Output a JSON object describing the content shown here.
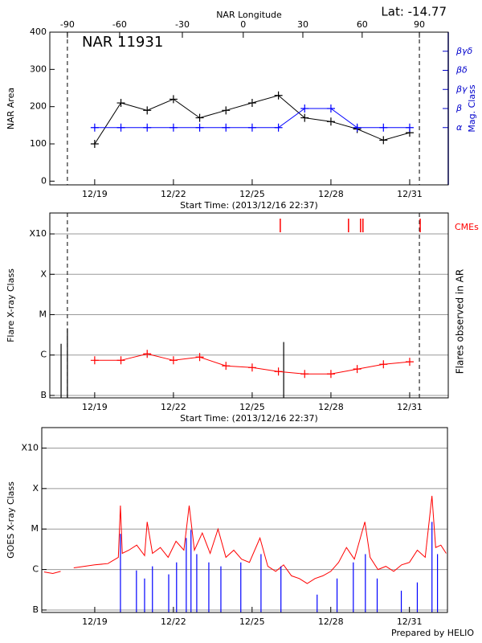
{
  "footer": "Prepared by HELIO",
  "chart_data": [
    {
      "type": "line",
      "title": "NAR 11931",
      "annotation": "Lat: -14.77",
      "x2label": "NAR Longitude",
      "xlabel": "Start Time: (2013/12/16 22:37)",
      "ylabel": "NAR Area",
      "y2label": "Mag. Class",
      "y2color": "#0000cc",
      "xlim": [
        17.29,
        32.47
      ],
      "xticks": [
        {
          "value": 19,
          "label": "12/19"
        },
        {
          "value": 22,
          "label": "12/22"
        },
        {
          "value": 25,
          "label": "12/25"
        },
        {
          "value": 28,
          "label": "12/28"
        },
        {
          "value": 31,
          "label": "12/31"
        }
      ],
      "x2ticks": [
        {
          "value": 17.96,
          "label": "-90"
        },
        {
          "value": 19.95,
          "label": "-60"
        },
        {
          "value": 22.34,
          "label": "-30"
        },
        {
          "value": 24.66,
          "label": "0"
        },
        {
          "value": 26.93,
          "label": "30"
        },
        {
          "value": 29.19,
          "label": "60"
        },
        {
          "value": 31.37,
          "label": "90"
        }
      ],
      "ylim": [
        -10,
        400
      ],
      "yticks": [
        0,
        100,
        200,
        300,
        400
      ],
      "y2lim": [
        0,
        8
      ],
      "y2ticks": [
        {
          "value": 3,
          "label": "α"
        },
        {
          "value": 4,
          "label": "β"
        },
        {
          "value": 5,
          "label": "βγ"
        },
        {
          "value": 6,
          "label": "βδ"
        },
        {
          "value": 7,
          "label": "βγδ"
        }
      ],
      "vlines": [
        17.96,
        31.37
      ],
      "series": [
        {
          "type": "line",
          "color": "#000000",
          "marker": "+",
          "x": [
            19,
            20,
            21,
            22,
            23,
            24,
            25,
            26,
            27,
            28,
            29,
            30,
            31
          ],
          "values": [
            100,
            210,
            190,
            220,
            170,
            190,
            210,
            230,
            170,
            160,
            140,
            110,
            130
          ]
        },
        {
          "type": "line",
          "color": "#0000ff",
          "marker": "+",
          "axis": "y2",
          "x": [
            19,
            20,
            21,
            22,
            23,
            24,
            25,
            26,
            27,
            28,
            29,
            30,
            31
          ],
          "values": [
            3,
            3,
            3,
            3,
            3,
            3,
            3,
            3,
            4,
            4,
            3,
            3,
            3
          ]
        }
      ]
    },
    {
      "type": "line",
      "ylabel": "Flare X-ray Class",
      "right_label": "Flares observed in AR",
      "xlabel": "Start Time: (2013/12/16 22:37)",
      "xlim": [
        17.29,
        32.47
      ],
      "xticks": [
        {
          "value": 19,
          "label": "12/19"
        },
        {
          "value": 22,
          "label": "12/22"
        },
        {
          "value": 25,
          "label": "12/25"
        },
        {
          "value": 28,
          "label": "12/28"
        },
        {
          "value": 31,
          "label": "12/31"
        }
      ],
      "log": true,
      "ylim": [
        8.7e-08,
        0.0033
      ],
      "yticks": [
        {
          "value": 1e-07,
          "label": "B"
        },
        {
          "value": 1e-06,
          "label": "C"
        },
        {
          "value": 1e-05,
          "label": "M"
        },
        {
          "value": 0.0001,
          "label": "X"
        },
        {
          "value": 0.001,
          "label": "X10"
        }
      ],
      "grid": true,
      "vlines": [
        17.96,
        31.37
      ],
      "series": [
        {
          "type": "bar",
          "color": "#000000",
          "x": [
            17.72,
            17.96,
            26.2
          ],
          "values": [
            1.9e-06,
            4.6e-06,
            2.1e-06
          ]
        },
        {
          "type": "line",
          "color": "#ff0000",
          "marker": "+",
          "x": [
            19,
            20,
            21,
            22,
            23,
            24,
            25,
            26,
            27,
            28,
            29,
            30,
            31
          ],
          "values": [
            7.4e-07,
            7.4e-07,
            1.07e-06,
            7.4e-07,
            8.9e-07,
            5.4e-07,
            4.9e-07,
            3.9e-07,
            3.4e-07,
            3.4e-07,
            4.5e-07,
            5.9e-07,
            6.8e-07
          ]
        },
        {
          "type": "event",
          "name": "CMEs",
          "color": "#ff0000",
          "x": [
            26.07,
            28.67,
            29.13,
            29.22,
            31.4
          ]
        }
      ]
    },
    {
      "type": "line",
      "ylabel": "GOES X-ray Class",
      "xlim": [
        16.98,
        32.45
      ],
      "xticks": [
        {
          "value": 19,
          "label": "12/19"
        },
        {
          "value": 22,
          "label": "12/22"
        },
        {
          "value": 25,
          "label": "12/25"
        },
        {
          "value": 28,
          "label": "12/28"
        },
        {
          "value": 31,
          "label": "12/31"
        }
      ],
      "log": true,
      "ylim": [
        8.7e-08,
        0.0032
      ],
      "yticks": [
        {
          "value": 1e-07,
          "label": "B"
        },
        {
          "value": 1e-06,
          "label": "C"
        },
        {
          "value": 1e-05,
          "label": "M"
        },
        {
          "value": 0.0001,
          "label": "X"
        },
        {
          "value": 0.001,
          "label": "X10"
        }
      ],
      "grid": true,
      "series": [
        {
          "type": "line",
          "color": "#ff0000",
          "x": [
            17.07,
            17.4,
            17.7,
            17.9,
            18.2,
            18.6,
            19.0,
            19.5,
            19.9,
            19.98,
            20.05,
            20.3,
            20.6,
            20.9,
            21.0,
            21.2,
            21.5,
            21.8,
            22.1,
            22.4,
            22.6,
            22.8,
            23.1,
            23.4,
            23.7,
            24.0,
            24.3,
            24.6,
            24.9,
            25.3,
            25.6,
            25.9,
            26.2,
            26.5,
            26.8,
            27.1,
            27.4,
            27.7,
            28.0,
            28.3,
            28.6,
            28.9,
            29.3,
            29.5,
            29.8,
            30.1,
            30.4,
            30.7,
            31.0,
            31.3,
            31.6,
            31.86,
            32.0,
            32.2,
            32.4
          ],
          "values": [
            8.7e-07,
            8e-07,
            9e-07,
            null,
            1.1e-06,
            1.2e-06,
            1.3e-06,
            1.4e-06,
            2e-06,
            3.8e-05,
            2.5e-06,
            3e-06,
            4e-06,
            2.2e-06,
            1.5e-05,
            2.5e-06,
            3.5e-06,
            2e-06,
            5e-06,
            3e-06,
            3.8e-05,
            3e-06,
            8e-06,
            2.5e-06,
            1e-05,
            2e-06,
            3e-06,
            1.8e-06,
            1.5e-06,
            6e-06,
            1.2e-06,
            9e-07,
            1.3e-06,
            7e-07,
            6e-07,
            4.5e-07,
            6e-07,
            7e-07,
            9e-07,
            1.5e-06,
            3.5e-06,
            1.8e-06,
            1.5e-05,
            2e-06,
            1e-06,
            1.2e-06,
            9e-07,
            1.3e-06,
            1.5e-06,
            3e-06,
            2e-06,
            6.6e-05,
            3.5e-06,
            4e-06,
            2.5e-06
          ]
        },
        {
          "type": "bar",
          "color": "#0000ff",
          "x": [
            19.98,
            20.59,
            20.9,
            21.2,
            21.82,
            22.12,
            22.49,
            22.67,
            22.89,
            23.35,
            23.81,
            24.57,
            25.34,
            26.1,
            27.48,
            28.24,
            28.86,
            29.32,
            29.77,
            30.69,
            31.3,
            31.86,
            32.07
          ],
          "values": [
            7.6e-06,
            9.5e-07,
            6e-07,
            1.2e-06,
            7.6e-07,
            1.5e-06,
            6e-06,
            9.5e-06,
            2.4e-06,
            1.5e-06,
            1.2e-06,
            1.5e-06,
            2.4e-06,
            1.2e-06,
            2.4e-07,
            6e-07,
            1.5e-06,
            2.4e-06,
            6e-07,
            3e-07,
            4.8e-07,
            1.5e-05,
            2.4e-06
          ]
        }
      ]
    }
  ]
}
